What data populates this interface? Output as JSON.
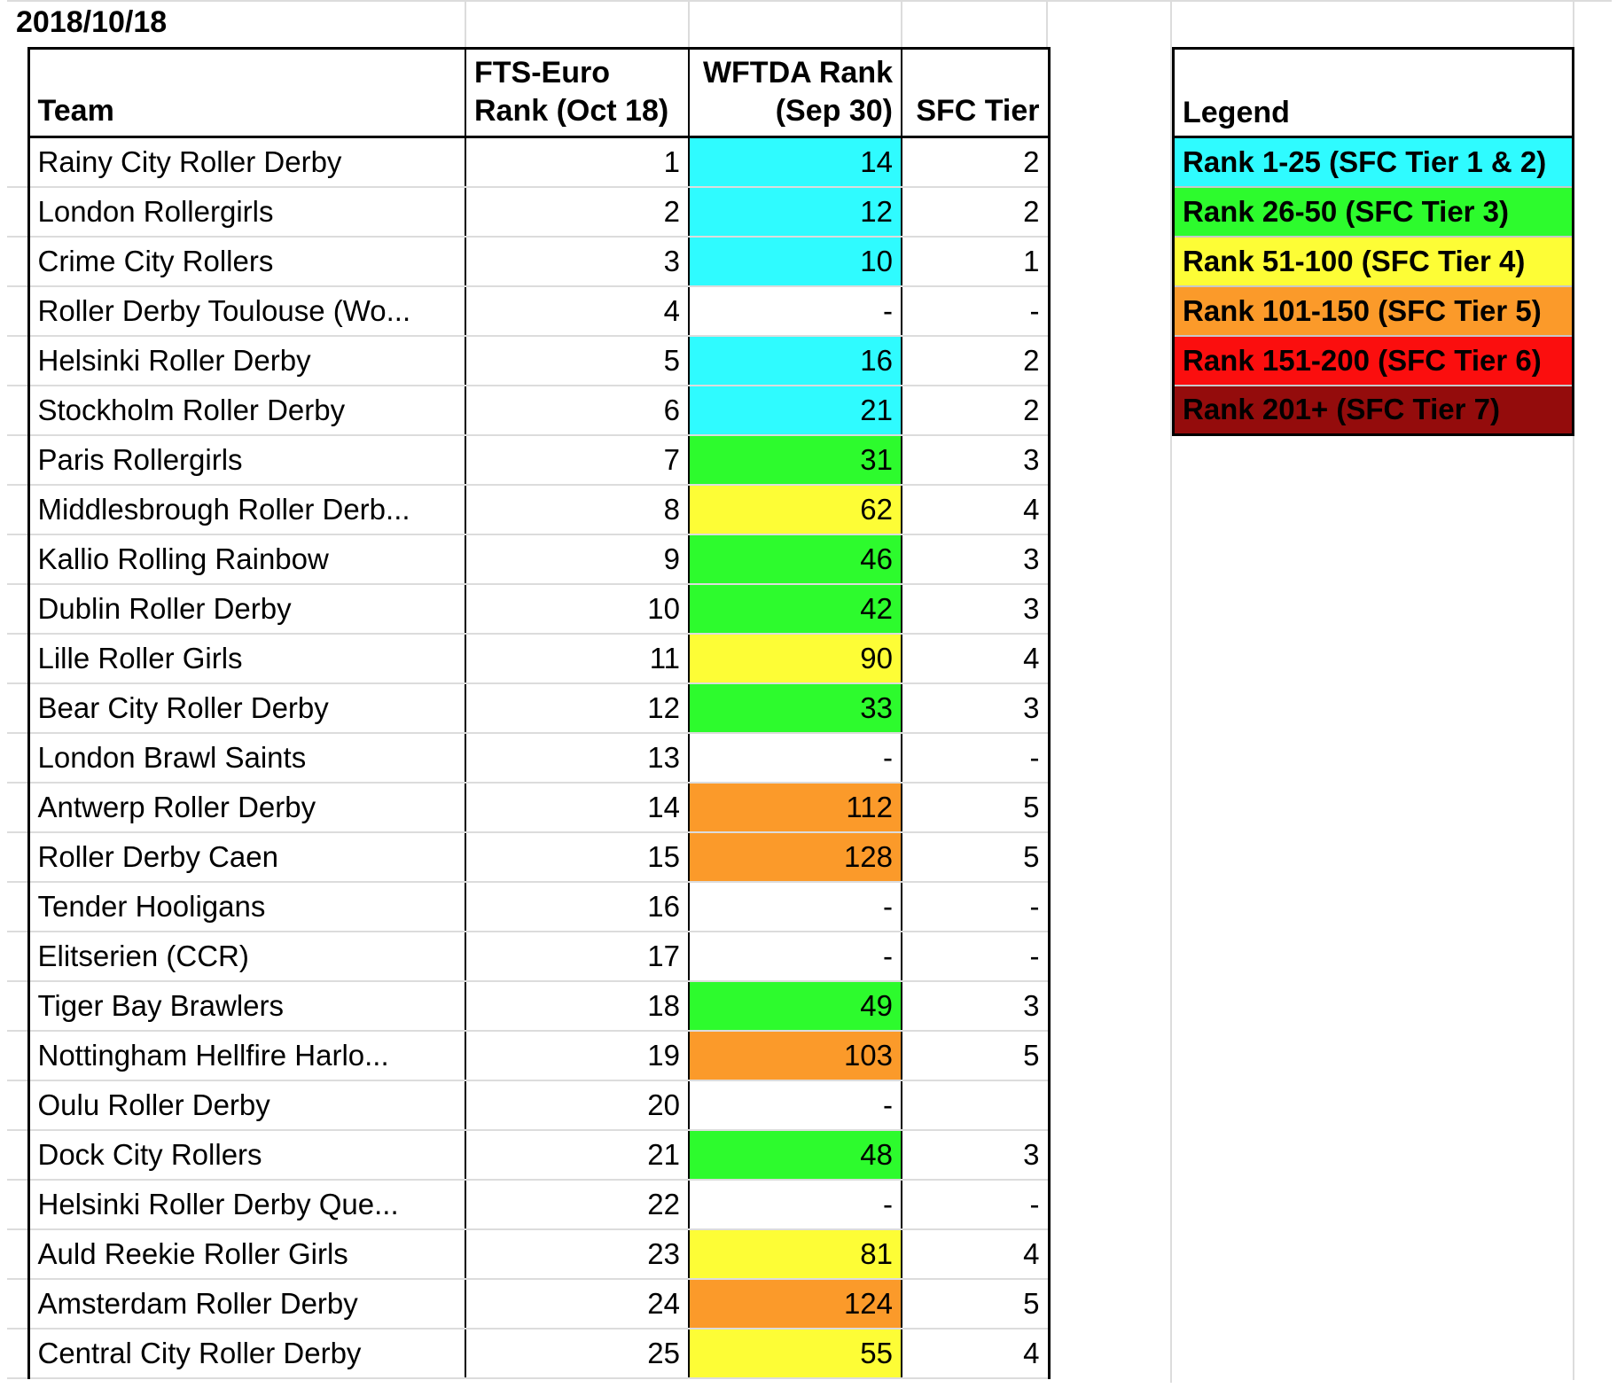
{
  "date": "2018/10/18",
  "colors": {
    "tier12": "#2ffbff",
    "tier3": "#2dfb2d",
    "tier4": "#fdfd36",
    "tier5": "#fb9a2a",
    "tier6": "#fb0e0e",
    "tier7": "#940c0c",
    "none": "#ffffff"
  },
  "table": {
    "headers": {
      "team": "Team",
      "fts": "FTS-Euro Rank (Oct 18)",
      "wftda": "WFTDA Rank (Sep 30)",
      "sfc": "SFC Tier"
    },
    "rows": [
      {
        "team": "Rainy City Roller Derby",
        "fts": "1",
        "wftda": "14",
        "sfc": "2",
        "color": "tier12"
      },
      {
        "team": "London Rollergirls",
        "fts": "2",
        "wftda": "12",
        "sfc": "2",
        "color": "tier12"
      },
      {
        "team": "Crime City Rollers",
        "fts": "3",
        "wftda": "10",
        "sfc": "1",
        "color": "tier12"
      },
      {
        "team": "Roller Derby Toulouse (Wo...",
        "fts": "4",
        "wftda": "-",
        "sfc": "-",
        "color": "none"
      },
      {
        "team": "Helsinki Roller Derby",
        "fts": "5",
        "wftda": "16",
        "sfc": "2",
        "color": "tier12"
      },
      {
        "team": "Stockholm Roller Derby",
        "fts": "6",
        "wftda": "21",
        "sfc": "2",
        "color": "tier12"
      },
      {
        "team": "Paris Rollergirls",
        "fts": "7",
        "wftda": "31",
        "sfc": "3",
        "color": "tier3"
      },
      {
        "team": "Middlesbrough Roller Derb...",
        "fts": "8",
        "wftda": "62",
        "sfc": "4",
        "color": "tier4"
      },
      {
        "team": "Kallio Rolling Rainbow",
        "fts": "9",
        "wftda": "46",
        "sfc": "3",
        "color": "tier3"
      },
      {
        "team": "Dublin Roller Derby",
        "fts": "10",
        "wftda": "42",
        "sfc": "3",
        "color": "tier3"
      },
      {
        "team": "Lille Roller Girls",
        "fts": "11",
        "wftda": "90",
        "sfc": "4",
        "color": "tier4"
      },
      {
        "team": "Bear City Roller Derby",
        "fts": "12",
        "wftda": "33",
        "sfc": "3",
        "color": "tier3"
      },
      {
        "team": "London Brawl Saints",
        "fts": "13",
        "wftda": "-",
        "sfc": "-",
        "color": "none"
      },
      {
        "team": "Antwerp Roller Derby",
        "fts": "14",
        "wftda": "112",
        "sfc": "5",
        "color": "tier5"
      },
      {
        "team": "Roller Derby Caen",
        "fts": "15",
        "wftda": "128",
        "sfc": "5",
        "color": "tier5"
      },
      {
        "team": "Tender Hooligans",
        "fts": "16",
        "wftda": "-",
        "sfc": "-",
        "color": "none"
      },
      {
        "team": "Elitserien (CCR)",
        "fts": "17",
        "wftda": "-",
        "sfc": "-",
        "color": "none"
      },
      {
        "team": "Tiger Bay Brawlers",
        "fts": "18",
        "wftda": "49",
        "sfc": "3",
        "color": "tier3"
      },
      {
        "team": "Nottingham Hellfire Harlo...",
        "fts": "19",
        "wftda": "103",
        "sfc": "5",
        "color": "tier5"
      },
      {
        "team": "Oulu Roller Derby",
        "fts": "20",
        "wftda": "-",
        "sfc": "",
        "color": "none"
      },
      {
        "team": "Dock City Rollers",
        "fts": "21",
        "wftda": "48",
        "sfc": "3",
        "color": "tier3"
      },
      {
        "team": "Helsinki Roller Derby Que...",
        "fts": "22",
        "wftda": "-",
        "sfc": "-",
        "color": "none"
      },
      {
        "team": "Auld Reekie Roller Girls",
        "fts": "23",
        "wftda": "81",
        "sfc": "4",
        "color": "tier4"
      },
      {
        "team": "Amsterdam Roller Derby",
        "fts": "24",
        "wftda": "124",
        "sfc": "5",
        "color": "tier5"
      },
      {
        "team": "Central City Roller Derby",
        "fts": "25",
        "wftda": "55",
        "sfc": "4",
        "color": "tier4"
      }
    ]
  },
  "legend": {
    "title": "Legend",
    "items": [
      {
        "label": "Rank 1-25 (SFC Tier 1 & 2)",
        "color": "tier12"
      },
      {
        "label": "Rank 26-50 (SFC Tier 3)",
        "color": "tier3"
      },
      {
        "label": "Rank 51-100 (SFC Tier 4)",
        "color": "tier4"
      },
      {
        "label": "Rank 101-150 (SFC Tier 5)",
        "color": "tier5"
      },
      {
        "label": "Rank 151-200 (SFC Tier 6)",
        "color": "tier6"
      },
      {
        "label": "Rank 201+ (SFC Tier 7)",
        "color": "tier7"
      }
    ]
  }
}
